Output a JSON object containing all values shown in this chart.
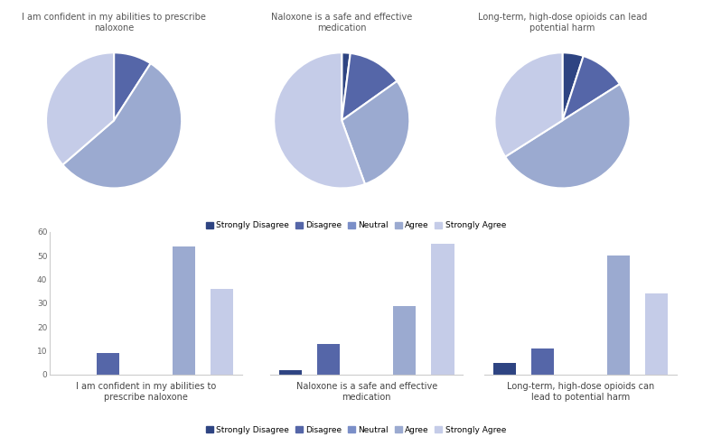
{
  "titles_pie": [
    "I am confident in my abilities to prescribe\nnaloxone",
    "Naloxone is a safe and effective\nmedication",
    "Long-term, high-dose opioids can lead\npotential harm"
  ],
  "titles_bar": [
    "I am confident in my abilities to\nprescribe naloxone",
    "Naloxone is a safe and effective\nmedication",
    "Long-term, high-dose opioids can\nlead to potential harm"
  ],
  "categories": [
    "Strongly Disagree",
    "Disagree",
    "Neutral",
    "Agree",
    "Strongly Agree"
  ],
  "colors": [
    "#2e4482",
    "#5566a8",
    "#7b8fc8",
    "#9baad0",
    "#c5cce8"
  ],
  "bar_data": [
    [
      0,
      9,
      0,
      54,
      36
    ],
    [
      2,
      13,
      0,
      29,
      55
    ],
    [
      5,
      11,
      0,
      50,
      34
    ]
  ],
  "pie_data": [
    [
      0,
      9,
      0,
      54,
      36
    ],
    [
      2,
      13,
      0,
      29,
      55
    ],
    [
      5,
      11,
      0,
      50,
      34
    ]
  ],
  "ylim": [
    0,
    60
  ],
  "yticks": [
    0,
    10,
    20,
    30,
    40,
    50,
    60
  ]
}
